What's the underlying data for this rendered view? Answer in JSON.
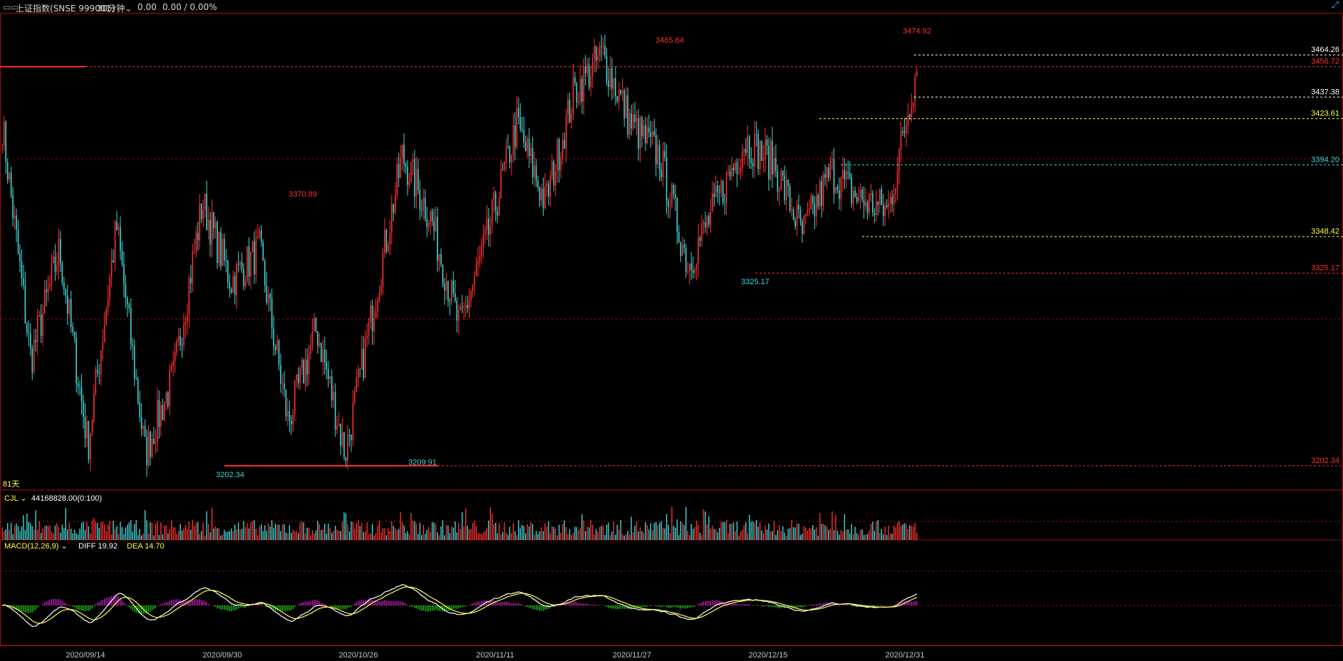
{
  "header": {
    "title": "上证指数(SNSE 999001）",
    "period": "30分钟",
    "change": "0.00",
    "change_pct": "0.00 / 0.00%",
    "corner_icon": "expand-icon"
  },
  "price_panel": {
    "days_label": "81天",
    "lo_label": "3202.34",
    "right_labels": [
      {
        "text": "3464.26",
        "color": "#ffffff"
      },
      {
        "text": "3456.72",
        "color": "#ff3030"
      },
      {
        "text": "3437.38",
        "color": "#ffffff"
      },
      {
        "text": "3423.61",
        "color": "#ffff40"
      },
      {
        "text": "3394.20",
        "color": "#40d8d8"
      },
      {
        "text": "3348.42",
        "color": "#ffff40"
      },
      {
        "text": "3325.17",
        "color": "#ff3030"
      },
      {
        "text": "3202.34",
        "color": "#ff3030"
      }
    ],
    "annotations": [
      {
        "text": "3474.92",
        "color": "#ff3030"
      },
      {
        "text": "3465.64",
        "color": "#ff3030"
      },
      {
        "text": "3370.89",
        "color": "#ff3030"
      },
      {
        "text": "3325.17",
        "color": "#40d8d8"
      },
      {
        "text": "3209.91",
        "color": "#40d8d8"
      },
      {
        "text": "3202.34",
        "color": "#40d8d8"
      }
    ]
  },
  "volume_panel": {
    "name": "CJL",
    "value": "44168828.00(0:100)"
  },
  "macd_panel": {
    "name": "MACD(12,26,9)",
    "diff_label": "DIFF 19.92",
    "dea_label": "DEA 14.70"
  },
  "x_axis": [
    "2020/09/14",
    "2020/09/30",
    "2020/10/26",
    "2020/11/11",
    "2020/11/27",
    "2020/12/15",
    "2020/12/31"
  ],
  "colors": {
    "up": "#ff3030",
    "down": "#40d8d8",
    "diff": "#ffffff",
    "dea": "#ffff40",
    "macd_pos": "#c020c0",
    "macd_neg": "#20c020",
    "fill_blue": "#2020ff"
  },
  "chart_data": {
    "type": "line",
    "title": "上证指数 30分钟",
    "x": [
      "2020/09/14",
      "2020/09/30",
      "2020/10/26",
      "2020/11/11",
      "2020/11/27",
      "2020/12/15",
      "2020/12/31"
    ],
    "price_anchors": [
      3420,
      3270,
      3340,
      3215,
      3355,
      3210,
      3260,
      3370,
      3320,
      3340,
      3230,
      3290,
      3210,
      3305,
      3400,
      3360,
      3290,
      3350,
      3420,
      3370,
      3440,
      3465,
      3420,
      3400,
      3330,
      3370,
      3410,
      3395,
      3350,
      3390,
      3372,
      3365,
      3457
    ],
    "marked_high": 3474.92,
    "marked_low": 3202.34,
    "levels": [
      3464.26,
      3456.72,
      3437.38,
      3423.61,
      3394.2,
      3348.42,
      3325.17,
      3202.34
    ],
    "ylim": [
      3195,
      3482
    ],
    "diff_last": 19.92,
    "dea_last": 14.7
  }
}
